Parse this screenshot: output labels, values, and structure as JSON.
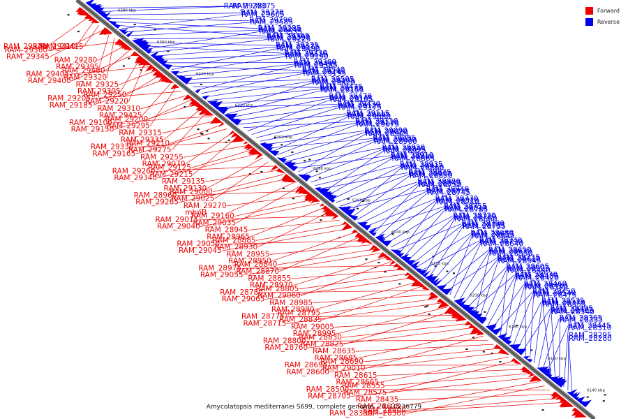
{
  "legend": {
    "forward_label": "Forward",
    "reverse_label": "Reverse",
    "forward_color": "#ee0000",
    "reverse_color": "#0000ee"
  },
  "caption": "Amycolatopsis mediterranei S699, complete genome. - 0..10236779",
  "axis_ticks": [
    "6140 kbp",
    "6160 kbp",
    "6180 kbp",
    "6200 kbp",
    "6220 kbp",
    "6240 kbp",
    "6260 kbp",
    "6280 kbp",
    "6300 kbp",
    "6320 kbp",
    "6340 kbp",
    "6360 kbp",
    "6380 kbp"
  ],
  "forward_genes": [
    "RAM_29570",
    "RAM_29410",
    "RAM_29415",
    "RAM_29345",
    "RAM_29395",
    "RAM_29320",
    "RAM_29360",
    "RAM_29280",
    "RAM_29480",
    "RAM_29400",
    "RAM_29305",
    "RAM_29220",
    "RAM_29405",
    "RAM_29325",
    "RAM_29250",
    "RAM_29185",
    "RAM_29425",
    "RAM_29295",
    "RAM_29205",
    "RAM_29310",
    "RAM_29200",
    "RAM_29150",
    "RAM_29335",
    "RAM_29275",
    "RAM_29100",
    "RAM_29315",
    "RAM_29210",
    "RAM_29165",
    "RAM_29070",
    "RAM_29215",
    "RAM_29330",
    "RAM_29255",
    "RAM_29125",
    "RAM_29340",
    "RAM_29130",
    "RAM_29025",
    "RAM_29260",
    "RAM_29135",
    "RAM_29000",
    "RAM_29265",
    "mhpB",
    "RAM_29035",
    "RAM_28960",
    "RAM_29270",
    "RAM_29160",
    "RAM_29040",
    "RAM_28965",
    "RAM_28930",
    "RAM_29015",
    "RAM_28945",
    "RAM_28885",
    "RAM_29045",
    "RAM_28950",
    "RAM_28870",
    "RAM_29050",
    "RAM_28955",
    "RAM_28840",
    "RAM_29055",
    "RAM_28970",
    "RAM_29060",
    "RAM_28975",
    "RAM_28855",
    "RAM_28805",
    "RAM_29065",
    "RAM_28980",
    "RAM_28835",
    "RAM_28780",
    "RAM_28985",
    "RAM_28795",
    "RAM_28715",
    "RAM_28995",
    "RAM_28825",
    "RAM_28775",
    "RAM_29005",
    "RAM_28830",
    "RAM_28760",
    "RAM_28685",
    "RAM_29010",
    "RAM_28800",
    "RAM_28635",
    "RAM_28690",
    "RAM_28600",
    "RAM_28665",
    "RAM_28575",
    "RAM_28695",
    "RAM_28615",
    "RAM_28555",
    "RAM_28705",
    "RAM_28625",
    "RAM_28560",
    "RAM_28500",
    "RAM_28435",
    "RAM_28400",
    "RAM_28350"
  ],
  "reverse_genes": [
    "RAM_29380",
    "RAM_29375",
    "RAM_29370",
    "RAM_29290",
    "RAM_29285",
    "RAM_29365",
    "RAM_29605",
    "RAM_29585",
    "RAM_29240",
    "RAM_29390",
    "RAM_29235",
    "RAM_29230",
    "RAM_29535",
    "RAM_29225",
    "RAM_29575",
    "RAM_29515",
    "RAM_29300",
    "RAM_29540",
    "RAM_29490",
    "RAM_29190",
    "RAM_29455",
    "RAM_29245",
    "RAM_29505",
    "RAM_29475",
    "RAM_29385",
    "RAM_29195",
    "RAM_29495",
    "RAM_29180",
    "RAM_29470",
    "RAM_29430",
    "RAM_29420",
    "RAM_29155",
    "RAM_29145",
    "RAM_29120",
    "RAM_29115",
    "RAM_29110",
    "RAM_29105",
    "RAM_29175",
    "RAM_29095",
    "RAM_29170",
    "RAM_29090",
    "RAM_29085",
    "RAM_29080",
    "RAM_29075",
    "RAM_29020",
    "RAM_29030",
    "RAM_28920",
    "RAM_28910",
    "RAM_28905",
    "RAM_28900",
    "RAM_28895",
    "RAM_28890",
    "RAM_28935",
    "RAM_28875",
    "RAM_28925",
    "RAM_28865",
    "RAM_28915",
    "RAM_28990",
    "RAM_28880",
    "RAM_28940",
    "RAM_28860",
    "RAM_28850",
    "RAM_28845",
    "RAM_28815",
    "RAM_28770",
    "RAM_28755",
    "RAM_28750",
    "RAM_28745",
    "RAM_28820",
    "RAM_28810",
    "RAM_28720",
    "RAM_28790",
    "RAM_28710",
    "RAM_28785",
    "RAM_28700",
    "RAM_28765",
    "RAM_28680",
    "RAM_28740",
    "RAM_28660",
    "RAM_28735",
    "RAM_28655",
    "RAM_28730",
    "RAM_28650",
    "RAM_28725",
    "RAM_28645",
    "RAM_28640",
    "RAM_28630",
    "RAM_28610",
    "RAM_28605",
    "RAM_28570",
    "RAM_28550",
    "RAM_28545",
    "RAM_28505",
    "RAM_28485",
    "RAM_28460",
    "RAM_28450",
    "RAM_28440",
    "RAM_28420",
    "RAM_28410",
    "RAM_28540",
    "RAM_28535",
    "RAM_28495",
    "RAM_28390",
    "RAM_28475",
    "RAM_28370",
    "RAM_28465",
    "RAM_28365",
    "RAM_28445",
    "RAM_28355",
    "RAM_28340",
    "RAM_28335",
    "RAM_28310",
    "RAM_28295",
    "RAM_28280"
  ]
}
